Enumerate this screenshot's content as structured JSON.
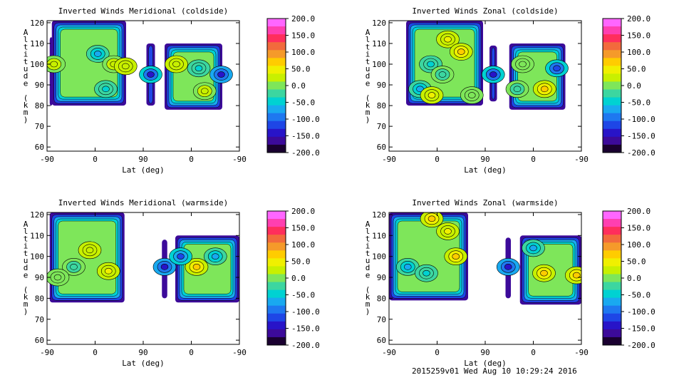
{
  "footer": "2015259v01 Wed Aug 10 10:29:24 2016",
  "colorbar": {
    "ticks": [
      "200.0",
      "150.0",
      "100.0",
      "50.0",
      "0.0",
      "-50.0",
      "-100.0",
      "-150.0",
      "-200.0"
    ],
    "colors": [
      "#ff66ff",
      "#ff3fb0",
      "#ff2e5c",
      "#f26a3c",
      "#f59a2a",
      "#ffcc00",
      "#f0f000",
      "#c8f000",
      "#7ee65a",
      "#3cd6a0",
      "#00d2d2",
      "#19a9f0",
      "#1e78f0",
      "#1e46e6",
      "#2814c8",
      "#3c0a9a",
      "#1a0030"
    ]
  },
  "chart_data": [
    {
      "type": "heatmap",
      "title": "Inverted Winds Meridional (coldside)",
      "xlabel": "Lat (deg)",
      "ylabel": "Altitude (km)",
      "xticks": [
        "-90",
        "0",
        "90",
        "0",
        "-90"
      ],
      "yticks": [
        "60",
        "70",
        "80",
        "90",
        "100",
        "110",
        "120"
      ],
      "ylim": [
        58,
        121
      ],
      "clim": [
        -200,
        200
      ],
      "regions": [
        {
          "xlo": -85,
          "xhi": -85,
          "ylo": 80,
          "yhi": 113
        },
        {
          "xlo": -81,
          "xhi": 58,
          "ylo": 80,
          "yhi": 121
        },
        {
          "xlo": 96,
          "xhi": 112,
          "ylo": 80,
          "yhi": 110
        },
        {
          "xlo": 130,
          "xhi": 238,
          "ylo": 78,
          "yhi": 110
        }
      ],
      "features": [
        {
          "lat": -77,
          "alt": 100,
          "value": 20
        },
        {
          "lat": 5,
          "alt": 105,
          "value": -60
        },
        {
          "lat": 35,
          "alt": 100,
          "value": 20
        },
        {
          "lat": 57,
          "alt": 99,
          "value": 30
        },
        {
          "lat": 20,
          "alt": 88,
          "value": -50
        },
        {
          "lat": 104,
          "alt": 95,
          "value": -130
        },
        {
          "lat": 152,
          "alt": 100,
          "value": 30
        },
        {
          "lat": 194,
          "alt": 98,
          "value": -40
        },
        {
          "lat": 205,
          "alt": 87,
          "value": 20
        },
        {
          "lat": 236,
          "alt": 95,
          "value": -150
        }
      ]
    },
    {
      "type": "heatmap",
      "title": "Inverted Winds Zonal (coldside)",
      "xlabel": "Lat (deg)",
      "ylabel": "Altitude (km)",
      "xticks": [
        "-90",
        "0",
        "90",
        "0",
        "-90"
      ],
      "yticks": [
        "60",
        "70",
        "80",
        "90",
        "100",
        "110",
        "120"
      ],
      "ylim": [
        58,
        121
      ],
      "clim": [
        -200,
        200
      ],
      "regions": [
        {
          "xlo": -58,
          "xhi": 86,
          "ylo": 80,
          "yhi": 121
        },
        {
          "xlo": 98,
          "xhi": 112,
          "ylo": 82,
          "yhi": 109
        },
        {
          "xlo": 135,
          "xhi": 240,
          "ylo": 78,
          "yhi": 110
        }
      ],
      "features": [
        {
          "lat": 20,
          "alt": 112,
          "value": 40
        },
        {
          "lat": 45,
          "alt": 106,
          "value": 70
        },
        {
          "lat": -12,
          "alt": 100,
          "value": -40
        },
        {
          "lat": 10,
          "alt": 95,
          "value": -20
        },
        {
          "lat": -32,
          "alt": 88,
          "value": -60
        },
        {
          "lat": -10,
          "alt": 85,
          "value": 50
        },
        {
          "lat": 65,
          "alt": 85,
          "value": 10
        },
        {
          "lat": 105,
          "alt": 95,
          "value": -140
        },
        {
          "lat": 160,
          "alt": 100,
          "value": -10
        },
        {
          "lat": 224,
          "alt": 98,
          "value": -120
        },
        {
          "lat": 201,
          "alt": 88,
          "value": 60
        },
        {
          "lat": 150,
          "alt": 88,
          "value": -20
        }
      ]
    },
    {
      "type": "heatmap",
      "title": "Inverted Winds Meridional (warmside)",
      "xlabel": "Lat (deg)",
      "ylabel": "Altitude (km)",
      "xticks": [
        "-90",
        "0",
        "90",
        "0",
        "-90"
      ],
      "yticks": [
        "60",
        "70",
        "80",
        "90",
        "100",
        "110",
        "120"
      ],
      "ylim": [
        58,
        121
      ],
      "clim": [
        -200,
        200
      ],
      "regions": [
        {
          "xlo": -85,
          "xhi": 55,
          "ylo": 78,
          "yhi": 121
        },
        {
          "xlo": 125,
          "xhi": 135,
          "ylo": 80,
          "yhi": 108
        },
        {
          "xlo": 150,
          "xhi": 270,
          "ylo": 78,
          "yhi": 110
        }
      ],
      "features": [
        {
          "lat": -10,
          "alt": 103,
          "value": 30
        },
        {
          "lat": 25,
          "alt": 93,
          "value": 50
        },
        {
          "lat": -40,
          "alt": 95,
          "value": -20
        },
        {
          "lat": -70,
          "alt": 90,
          "value": 10
        },
        {
          "lat": 130,
          "alt": 95,
          "value": -150
        },
        {
          "lat": 190,
          "alt": 95,
          "value": 60
        },
        {
          "lat": 225,
          "alt": 100,
          "value": -70
        },
        {
          "lat": 160,
          "alt": 100,
          "value": -110
        }
      ]
    },
    {
      "type": "heatmap",
      "title": "Inverted Winds Zonal (warmside)",
      "xlabel": "Lat (deg)",
      "ylabel": "Altitude (km)",
      "xticks": [
        "-90",
        "0",
        "90",
        "0",
        "-90"
      ],
      "yticks": [
        "60",
        "70",
        "80",
        "90",
        "100",
        "110",
        "120"
      ],
      "ylim": [
        58,
        121
      ],
      "clim": [
        -200,
        200
      ],
      "regions": [
        {
          "xlo": -90,
          "xhi": 58,
          "ylo": 79,
          "yhi": 121
        },
        {
          "xlo": 128,
          "xhi": 138,
          "ylo": 80,
          "yhi": 109
        },
        {
          "xlo": 155,
          "xhi": 270,
          "ylo": 77,
          "yhi": 110
        }
      ],
      "features": [
        {
          "lat": -10,
          "alt": 118,
          "value": 60
        },
        {
          "lat": 35,
          "alt": 100,
          "value": 60
        },
        {
          "lat": -55,
          "alt": 95,
          "value": -60
        },
        {
          "lat": -20,
          "alt": 92,
          "value": -40
        },
        {
          "lat": 20,
          "alt": 112,
          "value": 40
        },
        {
          "lat": 133,
          "alt": 95,
          "value": -150
        },
        {
          "lat": 200,
          "alt": 92,
          "value": 65
        },
        {
          "lat": 261,
          "alt": 91,
          "value": 60
        },
        {
          "lat": 180,
          "alt": 104,
          "value": -70
        }
      ]
    }
  ]
}
